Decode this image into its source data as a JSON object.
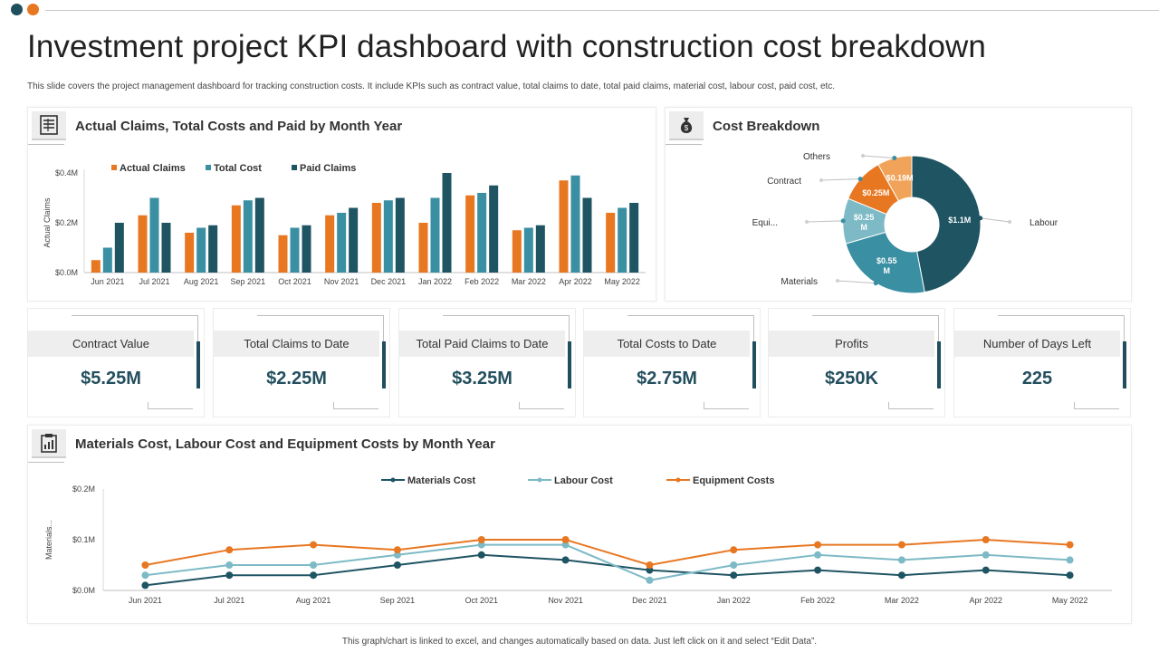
{
  "header": {
    "title": "Investment project KPI dashboard with construction cost breakdown",
    "subtitle": "This slide covers the project management dashboard for tracking construction costs. It include KPIs  such as contract value, total claims to date, total paid  claims, material cost, labour cost, paid cost, etc."
  },
  "colors": {
    "orange": "#e87722",
    "teal": "#3a8fa2",
    "dark": "#1f5463",
    "light_teal": "#7dbac6"
  },
  "bar_panel": {
    "title": "Actual  Claims,  Total Costs and Paid by Month Year",
    "icon": "spreadsheet-icon"
  },
  "pie_panel": {
    "title": "Cost Breakdown",
    "icon": "money-bag-icon"
  },
  "line_panel": {
    "title": "Materials Cost, Labour Cost and Equipment Costs by Month Year",
    "icon": "clipboard-chart-icon"
  },
  "kpis": [
    {
      "label": "Contract Value",
      "value": "$5.25M"
    },
    {
      "label": "Total Claims to Date",
      "value": "$2.25M"
    },
    {
      "label": "Total Paid Claims to Date",
      "value": "$3.25M"
    },
    {
      "label": "Total Costs to Date",
      "value": "$2.75M"
    },
    {
      "label": "Profits",
      "value": "$250K"
    },
    {
      "label": "Number of Days Left",
      "value": "225"
    }
  ],
  "footer": "This graph/chart is linked to excel, and changes automatically based on data. Just left click on it and select “Edit Data”.",
  "chart_data": [
    {
      "type": "bar",
      "title": "Actual  Claims,  Total Costs and Paid by Month Year",
      "ylabel": "Actual Claims",
      "ylim": [
        0,
        0.4
      ],
      "yticks": [
        "$0.0M",
        "$0.2M",
        "$0.4M"
      ],
      "categories": [
        "Jun 2021",
        "Jul 2021",
        "Aug 2021",
        "Sep 2021",
        "Oct 2021",
        "Nov 2021",
        "Dec 2021",
        "Jan 2022",
        "Feb 2022",
        "Mar 2022",
        "Apr 2022",
        "May 2022"
      ],
      "series": [
        {
          "name": "Actual Claims",
          "color": "#e87722",
          "values": [
            0.05,
            0.23,
            0.16,
            0.27,
            0.15,
            0.23,
            0.28,
            0.2,
            0.31,
            0.17,
            0.37,
            0.24
          ]
        },
        {
          "name": "Total Cost",
          "color": "#3a8fa2",
          "values": [
            0.1,
            0.3,
            0.18,
            0.29,
            0.18,
            0.24,
            0.29,
            0.3,
            0.32,
            0.18,
            0.39,
            0.26
          ]
        },
        {
          "name": "Paid Claims",
          "color": "#1f5463",
          "values": [
            0.2,
            0.2,
            0.19,
            0.3,
            0.19,
            0.26,
            0.3,
            0.4,
            0.35,
            0.19,
            0.3,
            0.28
          ]
        }
      ]
    },
    {
      "type": "pie",
      "title": "Cost Breakdown",
      "slices": [
        {
          "name": "Labour",
          "value": 1.1,
          "label": "$1.1M",
          "color": "#1f5463"
        },
        {
          "name": "Materials",
          "value": 0.55,
          "label": "$0.55 M",
          "color": "#3a8fa2"
        },
        {
          "name": "Equi...",
          "value": 0.25,
          "label": "$0.25 M",
          "color": "#7dbac6"
        },
        {
          "name": "Contract",
          "value": 0.25,
          "label": "$0.25M",
          "color": "#e87722"
        },
        {
          "name": "Others",
          "value": 0.19,
          "label": "$0.19M",
          "color": "#f2a35a"
        }
      ]
    },
    {
      "type": "line",
      "title": "Materials Cost, Labour Cost and Equipment Costs by Month Year",
      "ylabel": "Materials...",
      "ylim": [
        0,
        0.2
      ],
      "yticks": [
        "$0.0M",
        "$0.1M",
        "$0.2M"
      ],
      "categories": [
        "Jun 2021",
        "Jul 2021",
        "Aug 2021",
        "Sep 2021",
        "Oct 2021",
        "Nov 2021",
        "Dec 2021",
        "Jan 2022",
        "Feb 2022",
        "Mar 2022",
        "Apr 2022",
        "May 2022"
      ],
      "series": [
        {
          "name": "Materials Cost",
          "color": "#1f5463",
          "values": [
            0.01,
            0.03,
            0.03,
            0.05,
            0.07,
            0.06,
            0.04,
            0.03,
            0.04,
            0.03,
            0.04,
            0.03
          ]
        },
        {
          "name": "Labour Cost",
          "color": "#7dbac6",
          "values": [
            0.03,
            0.05,
            0.05,
            0.07,
            0.09,
            0.09,
            0.02,
            0.05,
            0.07,
            0.06,
            0.07,
            0.06
          ]
        },
        {
          "name": "Equipment Costs",
          "color": "#e87722",
          "values": [
            0.05,
            0.08,
            0.09,
            0.08,
            0.1,
            0.1,
            0.05,
            0.08,
            0.09,
            0.09,
            0.1,
            0.09
          ]
        }
      ]
    }
  ]
}
